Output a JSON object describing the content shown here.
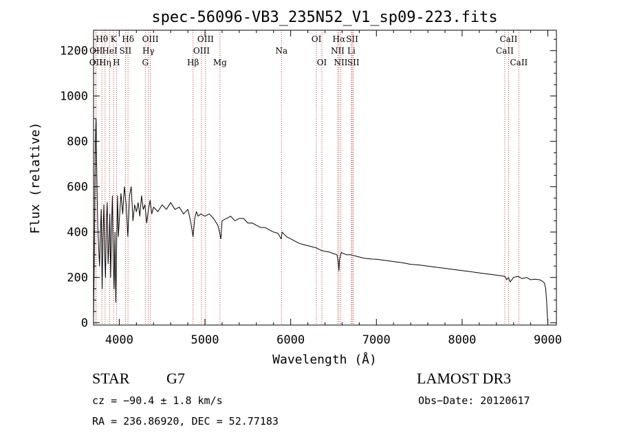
{
  "chart_data": {
    "type": "line",
    "title": "spec-56096-VB3_235N52_V1_sp09-223.fits",
    "xlabel": "Wavelength (Å)",
    "ylabel": "Flux (relative)",
    "xlim": [
      3700,
      9100
    ],
    "ylim": [
      -10,
      1290
    ],
    "xticks": [
      4000,
      5000,
      6000,
      7000,
      8000,
      9000
    ],
    "xtick_labels": [
      "4000",
      "5000",
      "6000",
      "7000",
      "8000",
      "9000"
    ],
    "yticks": [
      0,
      200,
      400,
      600,
      800,
      1000,
      1200
    ],
    "ytick_labels": [
      "0",
      "200",
      "400",
      "600",
      "800",
      "1000",
      "1200"
    ],
    "grid": false,
    "series": [
      {
        "name": "Flux",
        "x": [
          3700,
          3710,
          3720,
          3730,
          3740,
          3750,
          3760,
          3770,
          3780,
          3790,
          3800,
          3810,
          3820,
          3830,
          3840,
          3850,
          3860,
          3870,
          3880,
          3890,
          3900,
          3910,
          3920,
          3930,
          3940,
          3950,
          3960,
          3970,
          3980,
          3990,
          4000,
          4020,
          4040,
          4060,
          4080,
          4100,
          4120,
          4140,
          4160,
          4180,
          4200,
          4220,
          4240,
          4260,
          4280,
          4300,
          4320,
          4340,
          4360,
          4380,
          4400,
          4450,
          4500,
          4550,
          4600,
          4650,
          4700,
          4750,
          4800,
          4820,
          4840,
          4861,
          4880,
          4900,
          4920,
          4950,
          5000,
          5050,
          5100,
          5150,
          5170,
          5185,
          5200,
          5250,
          5300,
          5350,
          5400,
          5450,
          5500,
          5550,
          5600,
          5650,
          5700,
          5750,
          5800,
          5850,
          5890,
          5900,
          5950,
          6000,
          6050,
          6100,
          6150,
          6200,
          6250,
          6300,
          6350,
          6400,
          6450,
          6500,
          6540,
          6555,
          6563,
          6570,
          6590,
          6620,
          6650,
          6700,
          6750,
          6800,
          6850,
          6900,
          6950,
          7000,
          7100,
          7200,
          7300,
          7400,
          7500,
          7600,
          7700,
          7800,
          7900,
          8000,
          8100,
          8200,
          8300,
          8400,
          8500,
          8520,
          8540,
          8560,
          8600,
          8650,
          8700,
          8750,
          8800,
          8850,
          8900,
          8930,
          8960,
          8975,
          8985,
          8992,
          9000
        ],
        "values": [
          20,
          320,
          780,
          900,
          600,
          420,
          330,
          250,
          400,
          500,
          150,
          380,
          520,
          300,
          200,
          450,
          530,
          260,
          350,
          480,
          200,
          420,
          560,
          280,
          150,
          400,
          90,
          370,
          560,
          380,
          450,
          570,
          480,
          600,
          520,
          380,
          560,
          600,
          450,
          520,
          490,
          530,
          470,
          560,
          500,
          520,
          440,
          500,
          540,
          480,
          510,
          490,
          520,
          500,
          530,
          500,
          510,
          480,
          500,
          470,
          430,
          380,
          460,
          490,
          470,
          480,
          470,
          480,
          460,
          430,
          400,
          370,
          450,
          460,
          470,
          450,
          460,
          460,
          440,
          440,
          430,
          420,
          420,
          410,
          400,
          395,
          370,
          400,
          380,
          370,
          360,
          350,
          345,
          340,
          335,
          330,
          320,
          315,
          312,
          305,
          300,
          270,
          230,
          280,
          310,
          305,
          300,
          300,
          295,
          290,
          285,
          283,
          281,
          280,
          275,
          270,
          265,
          258,
          255,
          250,
          245,
          240,
          235,
          230,
          225,
          220,
          215,
          210,
          205,
          190,
          200,
          180,
          200,
          205,
          195,
          200,
          190,
          192,
          190,
          185,
          175,
          150,
          100,
          50,
          0
        ]
      }
    ],
    "line_markers": [
      {
        "label": "Hθ",
        "wavelength": 3798,
        "row": 1
      },
      {
        "label": "OII",
        "wavelength": 3727,
        "row": 3
      },
      {
        "label": "OII",
        "wavelength": 3730,
        "row": 2
      },
      {
        "label": "Hη",
        "wavelength": 3835,
        "row": 3
      },
      {
        "label": "HeI",
        "wavelength": 3889,
        "row": 2
      },
      {
        "label": "K",
        "wavelength": 3934,
        "row": 1
      },
      {
        "label": "H",
        "wavelength": 3968,
        "row": 3
      },
      {
        "label": "SII",
        "wavelength": 4072,
        "row": 2
      },
      {
        "label": "Hδ",
        "wavelength": 4102,
        "row": 1
      },
      {
        "label": "G",
        "wavelength": 4304,
        "row": 3
      },
      {
        "label": "Hγ",
        "wavelength": 4340,
        "row": 2
      },
      {
        "label": "OIII",
        "wavelength": 4363,
        "row": 1
      },
      {
        "label": "Hβ",
        "wavelength": 4861,
        "row": 3
      },
      {
        "label": "OIII",
        "wavelength": 4959,
        "row": 2
      },
      {
        "label": "OIII",
        "wavelength": 5007,
        "row": 1
      },
      {
        "label": "Mg",
        "wavelength": 5175,
        "row": 3
      },
      {
        "label": "Na",
        "wavelength": 5893,
        "row": 2
      },
      {
        "label": "OI",
        "wavelength": 6300,
        "row": 1
      },
      {
        "label": "OI",
        "wavelength": 6364,
        "row": 3
      },
      {
        "label": "NII",
        "wavelength": 6548,
        "row": 2
      },
      {
        "label": "Hα",
        "wavelength": 6563,
        "row": 1
      },
      {
        "label": "NII",
        "wavelength": 6584,
        "row": 3
      },
      {
        "label": "Li",
        "wavelength": 6708,
        "row": 2
      },
      {
        "label": "SII",
        "wavelength": 6717,
        "row": 1
      },
      {
        "label": "SII",
        "wavelength": 6731,
        "row": 3
      },
      {
        "label": "CaII",
        "wavelength": 8498,
        "row": 2
      },
      {
        "label": "CaII",
        "wavelength": 8542,
        "row": 1
      },
      {
        "label": "CaII",
        "wavelength": 8662,
        "row": 3
      }
    ]
  },
  "info": {
    "object_class": "STAR",
    "subclass": "G7",
    "survey": "LAMOST DR3",
    "redshift": "cz = −90.4 ± 1.8 km/s",
    "obs_date": "Obs−Date: 20120617",
    "coords": "RA = 236.86920, DEC =  52.77183"
  },
  "colors": {
    "marker": "#c0392b",
    "spectrum": "#000000",
    "axes": "#000000"
  }
}
